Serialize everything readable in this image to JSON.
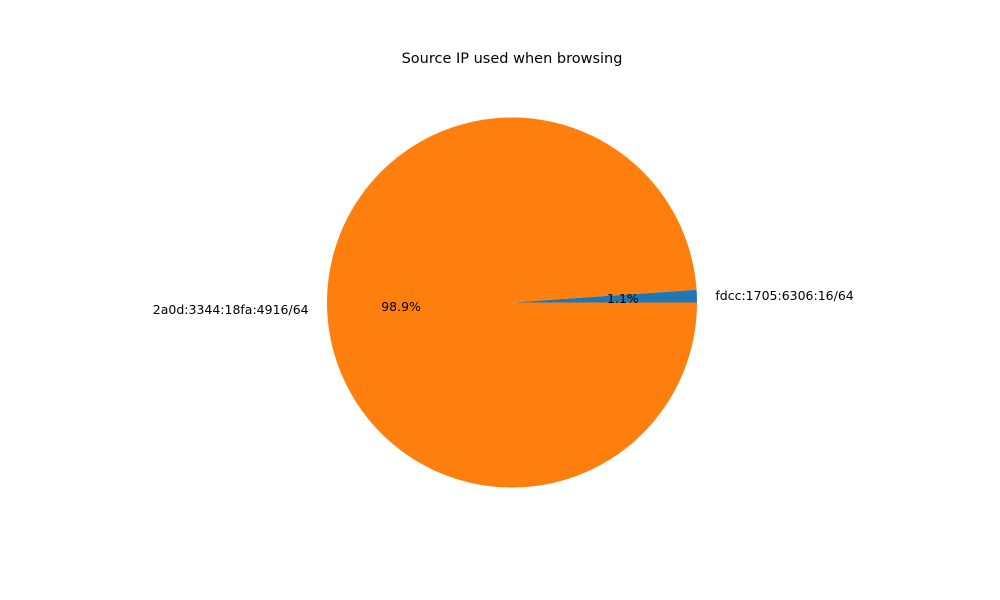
{
  "chart_data": {
    "type": "pie",
    "title": "Source IP used when browsing",
    "slices": [
      {
        "label": "fdcc:1705:6306:16/64",
        "percent": 1.1,
        "percent_label": "1.1%",
        "color": "#1f77b4"
      },
      {
        "label": "2a0d:3344:18fa:4916/64",
        "percent": 98.9,
        "percent_label": "98.9%",
        "color": "#ff7f0e"
      }
    ],
    "start_angle_deg": 0,
    "direction": "counterclockwise",
    "legend": "none"
  }
}
